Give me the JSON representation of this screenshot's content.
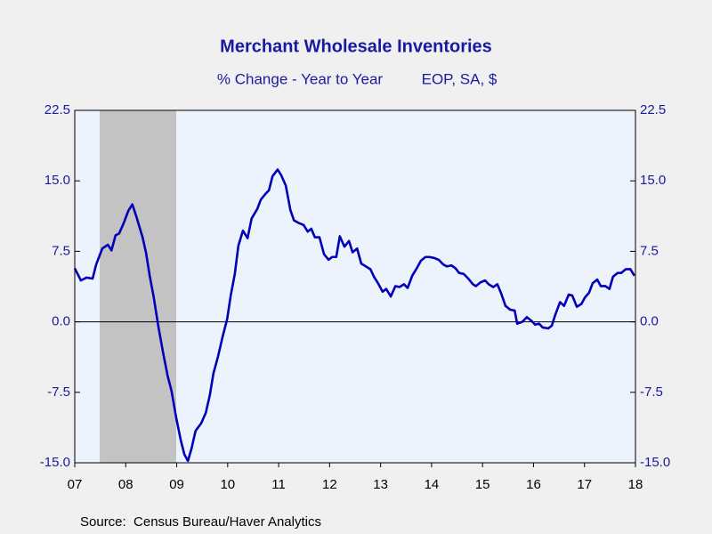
{
  "chart_data": {
    "type": "line",
    "title": "Merchant Wholesale Inventories",
    "subtitle": [
      "% Change - Year to Year",
      "EOP, SA, $"
    ],
    "source": "Source:  Census Bureau/Haver Analytics",
    "xlim": [
      2007.5,
      2018.5
    ],
    "xticks": [
      {
        "value": 2007.5,
        "label": "07"
      },
      {
        "value": 2008.5,
        "label": "08"
      },
      {
        "value": 2009.5,
        "label": "09"
      },
      {
        "value": 2010.5,
        "label": "10"
      },
      {
        "value": 2011.5,
        "label": "11"
      },
      {
        "value": 2012.5,
        "label": "12"
      },
      {
        "value": 2013.5,
        "label": "13"
      },
      {
        "value": 2014.5,
        "label": "14"
      },
      {
        "value": 2015.5,
        "label": "15"
      },
      {
        "value": 2016.5,
        "label": "16"
      },
      {
        "value": 2017.5,
        "label": "17"
      },
      {
        "value": 2018.5,
        "label": "18"
      }
    ],
    "ylim": [
      -15,
      22.5
    ],
    "yticks": [
      {
        "value": -15,
        "label": "-15.0"
      },
      {
        "value": -7.5,
        "label": "-7.5"
      },
      {
        "value": 0,
        "label": "0.0"
      },
      {
        "value": 7.5,
        "label": "7.5"
      },
      {
        "value": 15,
        "label": "15.0"
      },
      {
        "value": 22.5,
        "label": "22.5"
      }
    ],
    "zero_line": true,
    "recession_shading": [
      [
        2007.99,
        2009.49
      ]
    ],
    "x": [
      2007.5,
      2007.62,
      2007.73,
      2007.85,
      2007.92,
      2008.04,
      2008.15,
      2008.22,
      2008.3,
      2008.37,
      2008.46,
      2008.55,
      2008.63,
      2008.72,
      2008.83,
      2008.9,
      2008.97,
      2009.05,
      2009.14,
      2009.23,
      2009.32,
      2009.4,
      2009.49,
      2009.58,
      2009.65,
      2009.72,
      2009.79,
      2009.87,
      2009.98,
      2010.07,
      2010.15,
      2010.22,
      2010.31,
      2010.4,
      2010.49,
      2010.56,
      2010.64,
      2010.71,
      2010.8,
      2010.89,
      2010.97,
      2011.08,
      2011.15,
      2011.24,
      2011.31,
      2011.38,
      2011.48,
      2011.55,
      2011.64,
      2011.73,
      2011.8,
      2011.9,
      2011.99,
      2012.07,
      2012.14,
      2012.21,
      2012.3,
      2012.39,
      2012.48,
      2012.55,
      2012.63,
      2012.7,
      2012.79,
      2012.88,
      2012.95,
      2013.04,
      2013.12,
      2013.21,
      2013.3,
      2013.37,
      2013.45,
      2013.54,
      2013.61,
      2013.7,
      2013.79,
      2013.87,
      2013.96,
      2014.03,
      2014.12,
      2014.21,
      2014.29,
      2014.38,
      2014.45,
      2014.55,
      2014.64,
      2014.73,
      2014.8,
      2014.89,
      2014.97,
      2015.04,
      2015.13,
      2015.22,
      2015.31,
      2015.37,
      2015.46,
      2015.55,
      2015.62,
      2015.71,
      2015.79,
      2015.86,
      2015.95,
      2016.04,
      2016.13,
      2016.18,
      2016.28,
      2016.37,
      2016.46,
      2016.53,
      2016.61,
      2016.68,
      2016.79,
      2016.86,
      2016.93,
      2017.02,
      2017.1,
      2017.19,
      2017.26,
      2017.35,
      2017.44,
      2017.51,
      2017.59,
      2017.66,
      2017.75,
      2017.82,
      2017.91,
      2017.99,
      2018.06,
      2018.15,
      2018.22,
      2018.31,
      2018.4,
      2018.48
    ],
    "series": [
      {
        "color": "#0000b8",
        "values": [
          5.7,
          4.4,
          4.7,
          4.6,
          6.1,
          7.8,
          8.2,
          7.6,
          9.2,
          9.4,
          10.5,
          11.8,
          12.5,
          11.0,
          9.0,
          7.3,
          4.9,
          2.6,
          -0.5,
          -3.2,
          -5.7,
          -7.4,
          -10.2,
          -12.6,
          -14.1,
          -14.8,
          -13.5,
          -11.6,
          -10.8,
          -9.7,
          -7.8,
          -5.5,
          -3.7,
          -1.6,
          0.3,
          2.8,
          5.1,
          8.1,
          9.7,
          8.9,
          11.0,
          12.0,
          13.0,
          13.6,
          14.0,
          15.5,
          16.2,
          15.6,
          14.5,
          11.9,
          10.8,
          10.5,
          10.3,
          9.6,
          9.9,
          9.0,
          9.0,
          7.2,
          6.6,
          6.9,
          6.9,
          9.1,
          8.0,
          8.6,
          7.4,
          7.8,
          6.2,
          5.9,
          5.6,
          4.8,
          4.1,
          3.2,
          3.5,
          2.7,
          3.8,
          3.7,
          4.0,
          3.6,
          4.9,
          5.7,
          6.5,
          6.9,
          6.9,
          6.8,
          6.6,
          6.1,
          5.9,
          6.0,
          5.7,
          5.2,
          5.1,
          4.6,
          4.0,
          3.8,
          4.2,
          4.4,
          4.0,
          3.7,
          4.0,
          3.1,
          1.7,
          1.3,
          1.2,
          -0.2,
          0.0,
          0.5,
          0.1,
          -0.3,
          -0.2,
          -0.6,
          -0.7,
          -0.4,
          0.8,
          2.1,
          1.7,
          2.9,
          2.8,
          1.6,
          1.9,
          2.6,
          3.1,
          4.1,
          4.5,
          3.8,
          3.8,
          3.5,
          4.8,
          5.2,
          5.2,
          5.6,
          5.6,
          4.9
        ]
      }
    ]
  }
}
